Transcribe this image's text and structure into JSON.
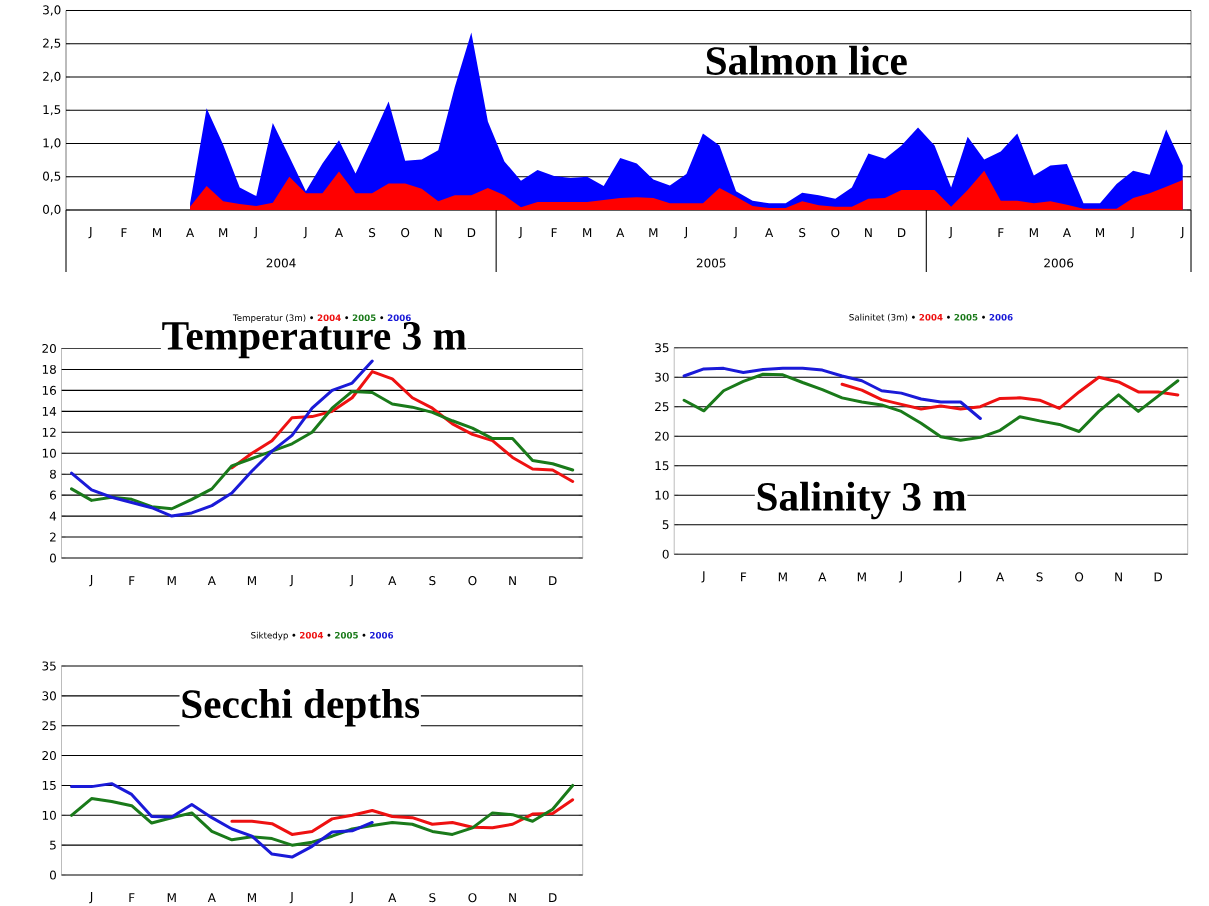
{
  "chart_data": [
    {
      "type": "area",
      "title": "Salmon lice",
      "categories": [
        null,
        "J",
        null,
        "F",
        null,
        "M",
        null,
        "A",
        null,
        "M",
        null,
        "J",
        null,
        null,
        "J",
        null,
        "A",
        null,
        "S",
        null,
        "O",
        null,
        "N",
        null,
        "D",
        null,
        null,
        "J",
        null,
        "F",
        null,
        "M",
        null,
        "A",
        null,
        "M",
        null,
        "J",
        null,
        null,
        "J",
        null,
        "A",
        null,
        "S",
        null,
        "O",
        null,
        "N",
        null,
        "D",
        null,
        null,
        "J",
        null,
        null,
        "F",
        null,
        "M",
        null,
        "A",
        null,
        "M",
        null,
        "J",
        null,
        null,
        "J"
      ],
      "ylim": [
        0,
        3
      ],
      "yticks": [
        {
          "value": 0,
          "label": "0,0"
        },
        {
          "value": 0.5,
          "label": "0,5"
        },
        {
          "value": 1,
          "label": "1,0"
        },
        {
          "value": 1.5,
          "label": "1,5"
        },
        {
          "value": 2,
          "label": "2,0"
        },
        {
          "value": 2.5,
          "label": "2,5"
        },
        {
          "value": 3,
          "label": "3,0"
        }
      ],
      "grid": "y",
      "annotations": [
        "2004",
        "2005",
        "2006"
      ],
      "series": [
        {
          "color": "#0000ff",
          "values": [
            null,
            null,
            null,
            null,
            null,
            null,
            null,
            0.1,
            1.53,
            0.98,
            0.34,
            0.21,
            1.31,
            0.8,
            0.28,
            0.7,
            1.05,
            0.55,
            1.08,
            1.63,
            0.74,
            0.76,
            0.9,
            1.85,
            2.67,
            1.33,
            0.73,
            0.44,
            0.6,
            0.51,
            0.48,
            0.5,
            0.36,
            0.78,
            0.7,
            0.46,
            0.37,
            0.54,
            1.15,
            0.97,
            0.28,
            0.14,
            0.1,
            0.1,
            0.26,
            0.22,
            0.17,
            0.34,
            0.85,
            0.77,
            0.97,
            1.24,
            0.97,
            0.34,
            1.1,
            0.76,
            0.88,
            1.15,
            0.52,
            0.67,
            0.69,
            0.1,
            0.1,
            0.39,
            0.59,
            0.53,
            1.21,
            0.67
          ]
        },
        {
          "color": "#ff0000",
          "values": [
            null,
            null,
            null,
            null,
            null,
            null,
            null,
            0.05,
            0.36,
            0.13,
            0.09,
            0.06,
            0.11,
            0.5,
            0.25,
            0.25,
            0.58,
            0.25,
            0.25,
            0.4,
            0.4,
            0.32,
            0.13,
            0.22,
            0.22,
            0.33,
            0.22,
            0.04,
            0.12,
            0.12,
            0.12,
            0.12,
            0.15,
            0.18,
            0.19,
            0.18,
            0.1,
            0.1,
            0.1,
            0.33,
            0.2,
            0.06,
            0.03,
            0.03,
            0.13,
            0.07,
            0.05,
            0.05,
            0.17,
            0.18,
            0.3,
            0.3,
            0.3,
            0.05,
            0.3,
            0.59,
            0.14,
            0.14,
            0.1,
            0.13,
            0.08,
            0.02,
            0.02,
            0.02,
            0.18,
            0.25,
            0.35,
            0.45
          ]
        }
      ]
    },
    {
      "type": "line",
      "title": "Temperature 3 m",
      "subtitle": "Temperatur (3m)",
      "legend": "top",
      "grid": "y",
      "categories": [
        null,
        "J",
        null,
        "F",
        null,
        "M",
        null,
        "A",
        null,
        "M",
        null,
        "J",
        null,
        null,
        "J",
        null,
        "A",
        null,
        "S",
        null,
        "O",
        null,
        "N",
        null,
        "D",
        null
      ],
      "ylim": [
        0,
        20
      ],
      "yticks": [
        0,
        2,
        4,
        6,
        8,
        10,
        12,
        14,
        16,
        18,
        20
      ],
      "series": [
        {
          "name": "2004",
          "color": "#ee1111",
          "values": [
            null,
            null,
            null,
            null,
            null,
            null,
            null,
            null,
            8.6,
            10.0,
            11.2,
            13.4,
            13.5,
            14.0,
            15.3,
            17.8,
            17.1,
            15.3,
            14.3,
            12.8,
            11.8,
            11.2,
            9.6,
            8.5,
            8.4,
            7.3
          ]
        },
        {
          "name": "2005",
          "color": "#1a7a1a",
          "values": [
            6.6,
            5.5,
            5.8,
            5.6,
            4.9,
            4.7,
            5.6,
            6.6,
            8.8,
            9.5,
            10.2,
            10.9,
            12.0,
            14.3,
            15.9,
            15.8,
            14.7,
            14.4,
            13.9,
            13.1,
            12.4,
            11.4,
            11.4,
            9.3,
            9.0,
            8.4
          ]
        },
        {
          "name": "2006",
          "color": "#1a1ad8",
          "values": [
            8.1,
            6.5,
            5.8,
            5.3,
            4.8,
            4.0,
            4.3,
            5.0,
            6.2,
            8.3,
            10.2,
            11.7,
            14.3,
            16.0,
            16.7,
            18.8,
            null,
            null,
            null,
            null,
            null,
            null,
            null,
            null,
            null,
            null
          ]
        }
      ]
    },
    {
      "type": "line",
      "title": "Salinity 3 m",
      "subtitle": "Salinitet (3m)",
      "legend": "top",
      "grid": "y",
      "categories": [
        null,
        "J",
        null,
        "F",
        null,
        "M",
        null,
        "A",
        null,
        "M",
        null,
        "J",
        null,
        null,
        "J",
        null,
        "A",
        null,
        "S",
        null,
        "O",
        null,
        "N",
        null,
        "D",
        null
      ],
      "ylim": [
        0,
        35
      ],
      "yticks": [
        0,
        5,
        10,
        15,
        20,
        25,
        30,
        35
      ],
      "series": [
        {
          "name": "2004",
          "color": "#ee1111",
          "values": [
            null,
            null,
            null,
            null,
            null,
            null,
            null,
            null,
            28.8,
            27.8,
            26.2,
            25.4,
            24.6,
            25.1,
            24.6,
            25.0,
            26.4,
            26.5,
            26.1,
            24.7,
            27.5,
            30.0,
            29.2,
            27.5,
            27.5,
            27.0
          ]
        },
        {
          "name": "2005",
          "color": "#1a7a1a",
          "values": [
            26.1,
            24.3,
            27.7,
            29.3,
            30.5,
            30.4,
            29.1,
            27.9,
            26.5,
            25.8,
            25.3,
            24.2,
            22.2,
            19.9,
            19.3,
            19.8,
            21.0,
            23.3,
            22.6,
            22.0,
            20.8,
            24.2,
            27.0,
            24.2,
            26.8,
            29.4
          ]
        },
        {
          "name": "2006",
          "color": "#1a1ad8",
          "values": [
            30.2,
            31.4,
            31.5,
            30.8,
            31.3,
            31.5,
            31.5,
            31.2,
            30.2,
            29.4,
            27.7,
            27.3,
            26.3,
            25.8,
            25.8,
            23.0,
            null,
            null,
            null,
            null,
            null,
            null,
            null,
            null,
            null,
            null
          ]
        }
      ]
    },
    {
      "type": "line",
      "title": "Secchi depths",
      "subtitle": "Siktedyp",
      "legend": "top",
      "grid": "y",
      "categories": [
        null,
        "J",
        null,
        "F",
        null,
        "M",
        null,
        "A",
        null,
        "M",
        null,
        "J",
        null,
        null,
        "J",
        null,
        "A",
        null,
        "S",
        null,
        "O",
        null,
        "N",
        null,
        "D",
        null
      ],
      "ylim": [
        0,
        35
      ],
      "yticks": [
        0,
        5,
        10,
        15,
        20,
        25,
        30,
        35
      ],
      "series": [
        {
          "name": "2004",
          "color": "#ee1111",
          "values": [
            null,
            null,
            null,
            null,
            null,
            null,
            null,
            null,
            9.0,
            9.0,
            8.6,
            6.8,
            7.3,
            9.4,
            10.0,
            10.8,
            9.8,
            9.6,
            8.5,
            8.8,
            8.0,
            7.9,
            8.5,
            10.2,
            10.3,
            12.6
          ]
        },
        {
          "name": "2005",
          "color": "#1a7a1a",
          "values": [
            10.0,
            12.8,
            12.3,
            11.6,
            8.7,
            9.6,
            10.4,
            7.3,
            5.9,
            6.4,
            6.1,
            5.0,
            5.5,
            6.5,
            7.7,
            8.3,
            8.8,
            8.5,
            7.3,
            6.8,
            7.9,
            10.4,
            10.1,
            9.0,
            11.0,
            15.0
          ]
        },
        {
          "name": "2006",
          "color": "#1a1ad8",
          "values": [
            14.8,
            14.8,
            15.3,
            13.5,
            9.8,
            9.7,
            11.8,
            9.6,
            7.7,
            6.5,
            3.5,
            3.0,
            4.8,
            7.2,
            7.4,
            8.8,
            null,
            null,
            null,
            null,
            null,
            null,
            null,
            null,
            null,
            null
          ]
        }
      ]
    }
  ]
}
